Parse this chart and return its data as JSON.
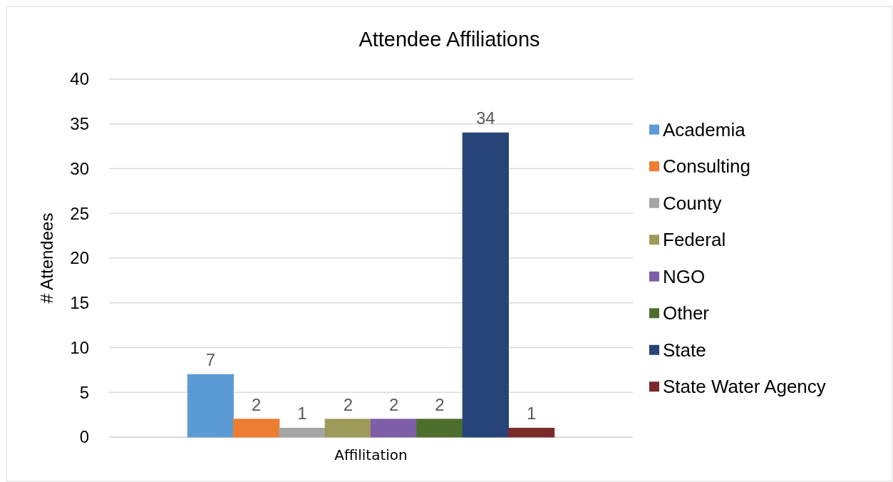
{
  "chart_data": {
    "type": "bar",
    "title": "Attendee Affiliations",
    "ylabel": "# Attendees",
    "categories": [
      "Affilitation"
    ],
    "series": [
      {
        "name": "Academia",
        "color": "#5b9bd5",
        "values": [
          7
        ]
      },
      {
        "name": "Consulting",
        "color": "#ed7d31",
        "values": [
          2
        ]
      },
      {
        "name": "County",
        "color": "#a5a5a5",
        "values": [
          1
        ]
      },
      {
        "name": "Federal",
        "color": "#9e9a5a",
        "values": [
          2
        ]
      },
      {
        "name": "NGO",
        "color": "#7e5ea6",
        "values": [
          2
        ]
      },
      {
        "name": "Other",
        "color": "#4e6e2e",
        "values": [
          2
        ]
      },
      {
        "name": "State",
        "color": "#264478",
        "values": [
          34
        ]
      },
      {
        "name": "State Water Agency",
        "color": "#7b2a2a",
        "values": [
          1
        ]
      }
    ],
    "ylim": [
      0,
      40
    ],
    "yticks": [
      0,
      5,
      10,
      15,
      20,
      25,
      30,
      35,
      40
    ],
    "grid": "y",
    "legend": "right",
    "data_labels": true
  }
}
